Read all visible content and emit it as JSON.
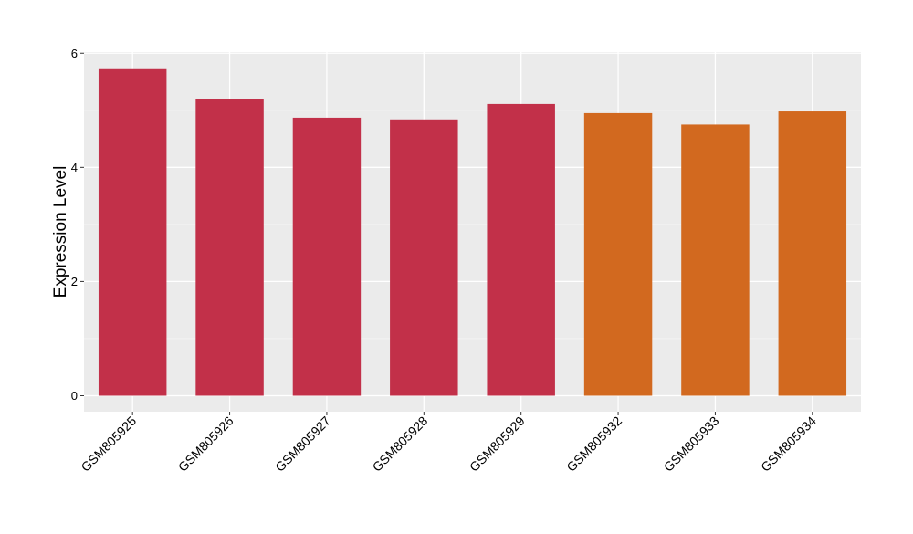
{
  "chart_data": {
    "type": "bar",
    "ylabel": "Expression Level",
    "xlabel": "",
    "ylim": [
      -0.28,
      6.02
    ],
    "yticks": [
      0,
      2,
      4,
      6
    ],
    "grid": true,
    "background": "#EBEBEB",
    "categories": [
      "GSM805925",
      "GSM805926",
      "GSM805927",
      "GSM805928",
      "GSM805929",
      "GSM805932",
      "GSM805933",
      "GSM805934"
    ],
    "values": [
      5.72,
      5.19,
      4.87,
      4.84,
      5.11,
      4.95,
      4.75,
      4.98
    ],
    "colors": [
      "#C23049",
      "#C23049",
      "#C23049",
      "#C23049",
      "#C23049",
      "#D2691F",
      "#D2691F",
      "#D2691F"
    ]
  }
}
